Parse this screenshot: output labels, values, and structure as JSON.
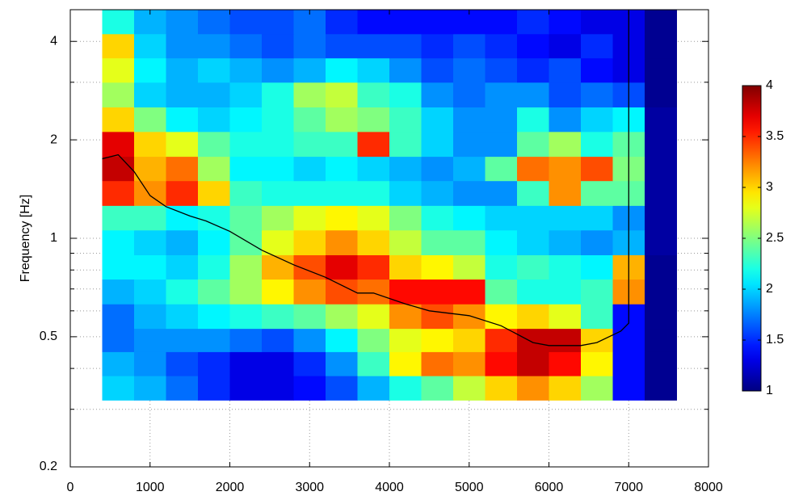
{
  "chart_data": {
    "type": "heatmap",
    "y_label": "Frequency [Hz]",
    "xlim": [
      0,
      8000
    ],
    "xticks": [
      0,
      1000,
      2000,
      3000,
      4000,
      5000,
      6000,
      7000,
      8000
    ],
    "ylim": [
      0.2,
      5
    ],
    "y_log": true,
    "yticks": [
      0.2,
      0.5,
      1,
      2,
      4
    ],
    "minor_yticks": [
      0.3,
      0.4,
      0.6,
      0.7,
      0.8,
      0.9,
      3
    ],
    "grid": true,
    "colormap": "jet",
    "clim": [
      1,
      4
    ],
    "colorbar_ticks": [
      1,
      1.5,
      2,
      2.5,
      3,
      3.5,
      4
    ],
    "x_edges": [
      400,
      800,
      1200,
      1600,
      2000,
      2400,
      2800,
      3200,
      3600,
      4000,
      4400,
      4800,
      5200,
      5600,
      6000,
      6400,
      6800,
      7200,
      7600
    ],
    "y_edges": [
      0.32,
      0.38,
      0.45,
      0.53,
      0.63,
      0.75,
      0.89,
      1.06,
      1.26,
      1.5,
      1.78,
      2.12,
      2.52,
      3,
      3.56,
      4.22,
      5
    ],
    "z": [
      [
        2.0,
        1.9,
        1.7,
        1.5,
        1.3,
        1.3,
        1.4,
        1.6,
        1.9,
        2.2,
        2.4,
        2.7,
        3.0,
        3.2,
        3.0,
        2.6,
        1.4,
        1.05
      ],
      [
        1.9,
        1.8,
        1.6,
        1.5,
        1.3,
        1.3,
        1.5,
        1.8,
        2.3,
        2.9,
        3.3,
        3.2,
        3.6,
        3.8,
        3.6,
        2.9,
        1.4,
        1.05
      ],
      [
        1.7,
        1.8,
        1.8,
        1.8,
        1.7,
        1.6,
        1.8,
        2.1,
        2.5,
        2.8,
        2.9,
        3.0,
        3.5,
        3.8,
        3.8,
        3.0,
        1.4,
        1.05
      ],
      [
        1.7,
        1.9,
        2.0,
        2.1,
        2.2,
        2.3,
        2.4,
        2.6,
        2.8,
        3.2,
        3.4,
        3.2,
        2.9,
        3.0,
        2.8,
        2.3,
        1.4,
        1.05
      ],
      [
        1.9,
        2.0,
        2.2,
        2.4,
        2.6,
        2.9,
        3.2,
        3.4,
        3.3,
        3.6,
        3.6,
        3.6,
        2.4,
        2.2,
        2.2,
        2.3,
        3.2,
        1.05
      ],
      [
        2.1,
        2.1,
        2.0,
        2.2,
        2.6,
        3.1,
        3.4,
        3.7,
        3.5,
        3.0,
        2.9,
        2.7,
        2.2,
        2.3,
        2.2,
        2.1,
        3.1,
        1.05
      ],
      [
        2.1,
        2.0,
        1.9,
        2.1,
        2.4,
        2.8,
        3.0,
        3.2,
        3.0,
        2.7,
        2.4,
        2.4,
        2.1,
        2.0,
        1.9,
        1.8,
        1.9,
        1.1
      ],
      [
        2.3,
        2.3,
        2.1,
        2.2,
        2.4,
        2.6,
        2.8,
        2.9,
        2.8,
        2.5,
        2.2,
        2.1,
        2.0,
        2.0,
        2.0,
        2.0,
        1.8,
        1.1
      ],
      [
        3.5,
        3.2,
        3.5,
        3.0,
        2.3,
        2.2,
        2.2,
        2.2,
        2.2,
        2.0,
        1.9,
        1.8,
        1.8,
        2.3,
        3.2,
        2.4,
        2.4,
        1.1
      ],
      [
        3.8,
        3.1,
        3.3,
        2.6,
        2.1,
        2.1,
        2.0,
        2.1,
        2.0,
        1.9,
        1.8,
        1.9,
        2.4,
        3.3,
        3.2,
        3.4,
        2.5,
        1.1
      ],
      [
        3.7,
        3.0,
        2.8,
        2.4,
        2.2,
        2.2,
        2.3,
        2.3,
        3.5,
        2.3,
        2.0,
        1.8,
        1.8,
        2.4,
        2.6,
        2.2,
        2.4,
        1.1
      ],
      [
        3.0,
        2.5,
        2.1,
        2.0,
        2.1,
        2.2,
        2.4,
        2.6,
        2.5,
        2.3,
        2.0,
        1.8,
        1.8,
        2.2,
        1.8,
        2.0,
        2.1,
        1.1
      ],
      [
        2.6,
        2.0,
        1.9,
        1.9,
        2.0,
        2.2,
        2.6,
        2.7,
        2.3,
        2.2,
        1.8,
        1.7,
        1.8,
        1.8,
        1.6,
        1.7,
        1.6,
        1.05
      ],
      [
        2.8,
        2.1,
        1.9,
        2.0,
        1.9,
        1.8,
        1.9,
        2.1,
        2.0,
        1.8,
        1.6,
        1.7,
        1.6,
        1.5,
        1.6,
        1.4,
        1.3,
        1.05
      ],
      [
        3.0,
        2.0,
        1.8,
        1.8,
        1.7,
        1.6,
        1.7,
        1.6,
        1.6,
        1.6,
        1.5,
        1.6,
        1.5,
        1.4,
        1.3,
        1.5,
        1.3,
        1.05
      ],
      [
        2.2,
        1.9,
        1.8,
        1.7,
        1.6,
        1.6,
        1.7,
        1.5,
        1.4,
        1.4,
        1.4,
        1.4,
        1.4,
        1.5,
        1.4,
        1.3,
        1.3,
        1.05
      ]
    ],
    "line": {
      "color": "#000000",
      "x": [
        400,
        600,
        800,
        1000,
        1200,
        1500,
        1700,
        2000,
        2400,
        2800,
        3200,
        3600,
        3800,
        4200,
        4500,
        5000,
        5400,
        5800,
        6000,
        6400,
        6600,
        6900,
        7000,
        7000
      ],
      "y": [
        1.75,
        1.8,
        1.6,
        1.35,
        1.25,
        1.17,
        1.13,
        1.05,
        0.92,
        0.83,
        0.76,
        0.68,
        0.68,
        0.63,
        0.6,
        0.58,
        0.54,
        0.48,
        0.47,
        0.47,
        0.48,
        0.52,
        0.55,
        5
      ]
    }
  }
}
